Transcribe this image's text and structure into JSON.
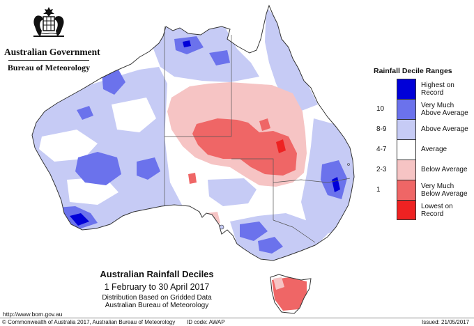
{
  "header": {
    "government": "Australian Government",
    "bureau": "Bureau of Meteorology"
  },
  "legend": {
    "title": "Rainfall Decile Ranges",
    "items": [
      {
        "range": "",
        "label": "Highest on Record",
        "color": "#0000d8"
      },
      {
        "range": "10",
        "label": "Very Much Above Average",
        "color": "#6b72ec"
      },
      {
        "range": "8-9",
        "label": "Above Average",
        "color": "#c6cbf5"
      },
      {
        "range": "4-7",
        "label": "Average",
        "color": "#ffffff"
      },
      {
        "range": "2-3",
        "label": "Below Average",
        "color": "#f6c4c4"
      },
      {
        "range": "1",
        "label": "Very Much Below Average",
        "color": "#ef6666"
      },
      {
        "range": "",
        "label": "Lowest on Record",
        "color": "#ee2222"
      }
    ]
  },
  "caption": {
    "title": "Australian Rainfall Deciles",
    "period": "1 February to 30 April 2017",
    "distribution": "Distribution Based on Gridded Data",
    "source": "Australian Bureau of Meteorology"
  },
  "footer": {
    "url": "http://www.bom.gov.au",
    "copyright": "© Commonwealth of Australia 2017, Australian Bureau of Meteorology",
    "id_code": "ID code: AWAP",
    "issued": "Issued: 21/05/2017"
  },
  "colors": {
    "land": "#ffffff",
    "outline": "#333333",
    "above": "#c6cbf5",
    "very_much_above": "#6b72ec",
    "highest": "#0000d8",
    "below": "#f6c4c4",
    "very_much_below": "#ef6666",
    "lowest": "#ee2222"
  }
}
